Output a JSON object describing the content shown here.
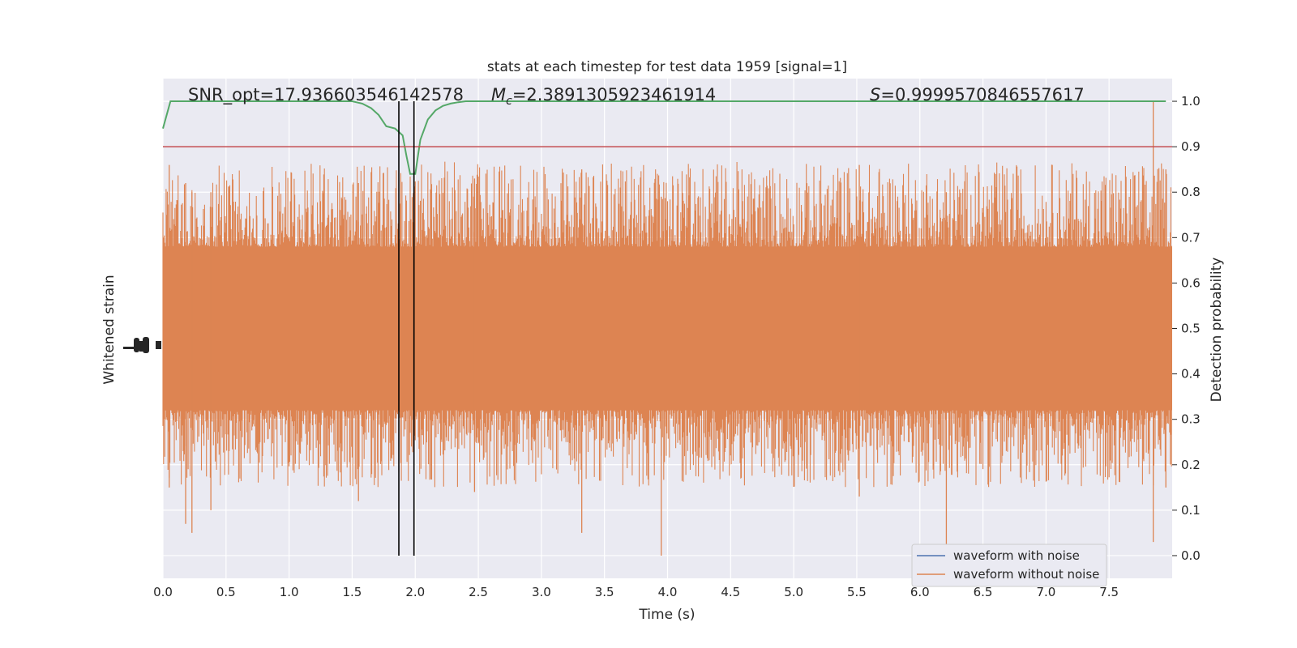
{
  "chart_data": {
    "type": "line",
    "title": "stats at each timestep for test data 1959 [signal=1]",
    "xlabel": "Time (s)",
    "ylabel_left": "Whitened strain",
    "ylabel_right": "Detection probability",
    "xlim": [
      0.0,
      8.0
    ],
    "ylim_right": [
      -0.05,
      1.05
    ],
    "x_ticks": [
      "0.0",
      "0.5",
      "1.0",
      "1.5",
      "2.0",
      "2.5",
      "3.0",
      "3.5",
      "4.0",
      "4.5",
      "5.0",
      "5.5",
      "6.0",
      "6.5",
      "7.0",
      "7.5"
    ],
    "y_right_ticks": [
      "0.0",
      "0.1",
      "0.2",
      "0.3",
      "0.4",
      "0.5",
      "0.6",
      "0.7",
      "0.8",
      "0.9",
      "1.0"
    ],
    "grid": true,
    "legend_position": "lower-right",
    "annotations": {
      "snr": "SNR_opt=17.936603546142578",
      "mc_symbol": "M",
      "mc_sub": "c",
      "mc_value": "=2.3891305923461914",
      "s_symbol": "S",
      "s_value": "=0.9999570846557617"
    },
    "threshold": 0.9,
    "vlines": [
      1.87,
      1.99
    ],
    "series": [
      {
        "name": "waveform with noise",
        "color": "#4c72b0"
      },
      {
        "name": "waveform without noise",
        "color": "#dd8452"
      },
      {
        "color": "#55a868",
        "x": [
          0.0,
          0.06,
          0.2,
          0.4,
          0.6,
          0.8,
          1.0,
          1.2,
          1.4,
          1.5,
          1.58,
          1.65,
          1.71,
          1.77,
          1.84,
          1.9,
          1.93,
          1.96,
          2.0,
          2.04,
          2.1,
          2.16,
          2.22,
          2.28,
          2.34,
          2.4,
          2.5,
          2.6,
          3.0,
          4.0,
          5.0,
          6.0,
          7.0,
          7.5,
          7.95
        ],
        "y": [
          0.94,
          1.0,
          1.0,
          1.0,
          1.0,
          1.0,
          1.0,
          1.0,
          1.0,
          1.0,
          0.995,
          0.985,
          0.97,
          0.945,
          0.94,
          0.925,
          0.88,
          0.84,
          0.84,
          0.915,
          0.96,
          0.98,
          0.99,
          0.995,
          0.998,
          1.0,
          1.0,
          1.0,
          1.0,
          1.0,
          1.0,
          1.0,
          1.0,
          1.0,
          1.0
        ]
      },
      {
        "color": "#c44e52",
        "value": 0.9
      }
    ]
  }
}
